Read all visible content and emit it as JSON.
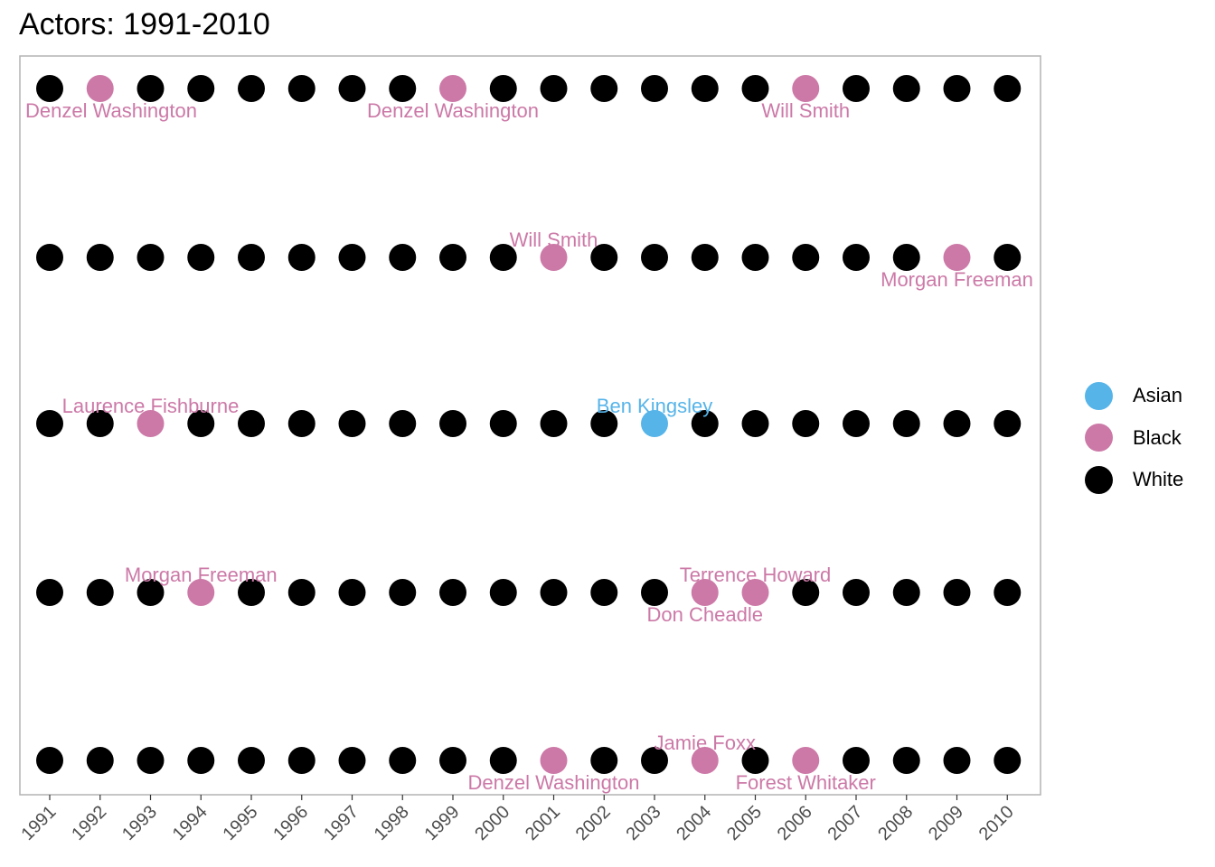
{
  "title": "Actors: 1991-2010",
  "colors": {
    "Asian": "#56B4E9",
    "Black": "#CC79A7",
    "White": "#000000"
  },
  "legend": [
    {
      "label": "Asian",
      "color": "#56B4E9"
    },
    {
      "label": "Black",
      "color": "#CC79A7"
    },
    {
      "label": "White",
      "color": "#000000"
    }
  ],
  "chart_data": {
    "type": "scatter",
    "title": "Actors: 1991-2010",
    "xlabel": "",
    "ylabel": "",
    "categories": [
      "1991",
      "1992",
      "1993",
      "1994",
      "1995",
      "1996",
      "1997",
      "1998",
      "1999",
      "2000",
      "2001",
      "2002",
      "2003",
      "2004",
      "2005",
      "2006",
      "2007",
      "2008",
      "2009",
      "2010"
    ],
    "grid": false,
    "legend_position": "right",
    "default_group": "White",
    "rows": 5,
    "highlights": [
      {
        "row": 1,
        "year": "1992",
        "group": "Black",
        "name": "Denzel Washington",
        "label_side": "below"
      },
      {
        "row": 1,
        "year": "1999",
        "group": "Black",
        "name": "Denzel Washington",
        "label_side": "below"
      },
      {
        "row": 1,
        "year": "2006",
        "group": "Black",
        "name": "Will Smith",
        "label_side": "below"
      },
      {
        "row": 2,
        "year": "2001",
        "group": "Black",
        "name": "Will Smith",
        "label_side": "above"
      },
      {
        "row": 2,
        "year": "2009",
        "group": "Black",
        "name": "Morgan Freeman",
        "label_side": "below"
      },
      {
        "row": 3,
        "year": "1993",
        "group": "Black",
        "name": "Laurence Fishburne",
        "label_side": "above"
      },
      {
        "row": 3,
        "year": "2003",
        "group": "Asian",
        "name": "Ben Kingsley",
        "label_side": "above"
      },
      {
        "row": 4,
        "year": "1994",
        "group": "Black",
        "name": "Morgan Freeman",
        "label_side": "above"
      },
      {
        "row": 4,
        "year": "2004",
        "group": "Black",
        "name": "Don Cheadle",
        "label_side": "below"
      },
      {
        "row": 4,
        "year": "2005",
        "group": "Black",
        "name": "Terrence Howard",
        "label_side": "above"
      },
      {
        "row": 5,
        "year": "2001",
        "group": "Black",
        "name": "Denzel Washington",
        "label_side": "below"
      },
      {
        "row": 5,
        "year": "2004",
        "group": "Black",
        "name": "Jamie Foxx",
        "label_side": "above"
      },
      {
        "row": 5,
        "year": "2006",
        "group": "Black",
        "name": "Forest Whitaker",
        "label_side": "below"
      }
    ]
  }
}
